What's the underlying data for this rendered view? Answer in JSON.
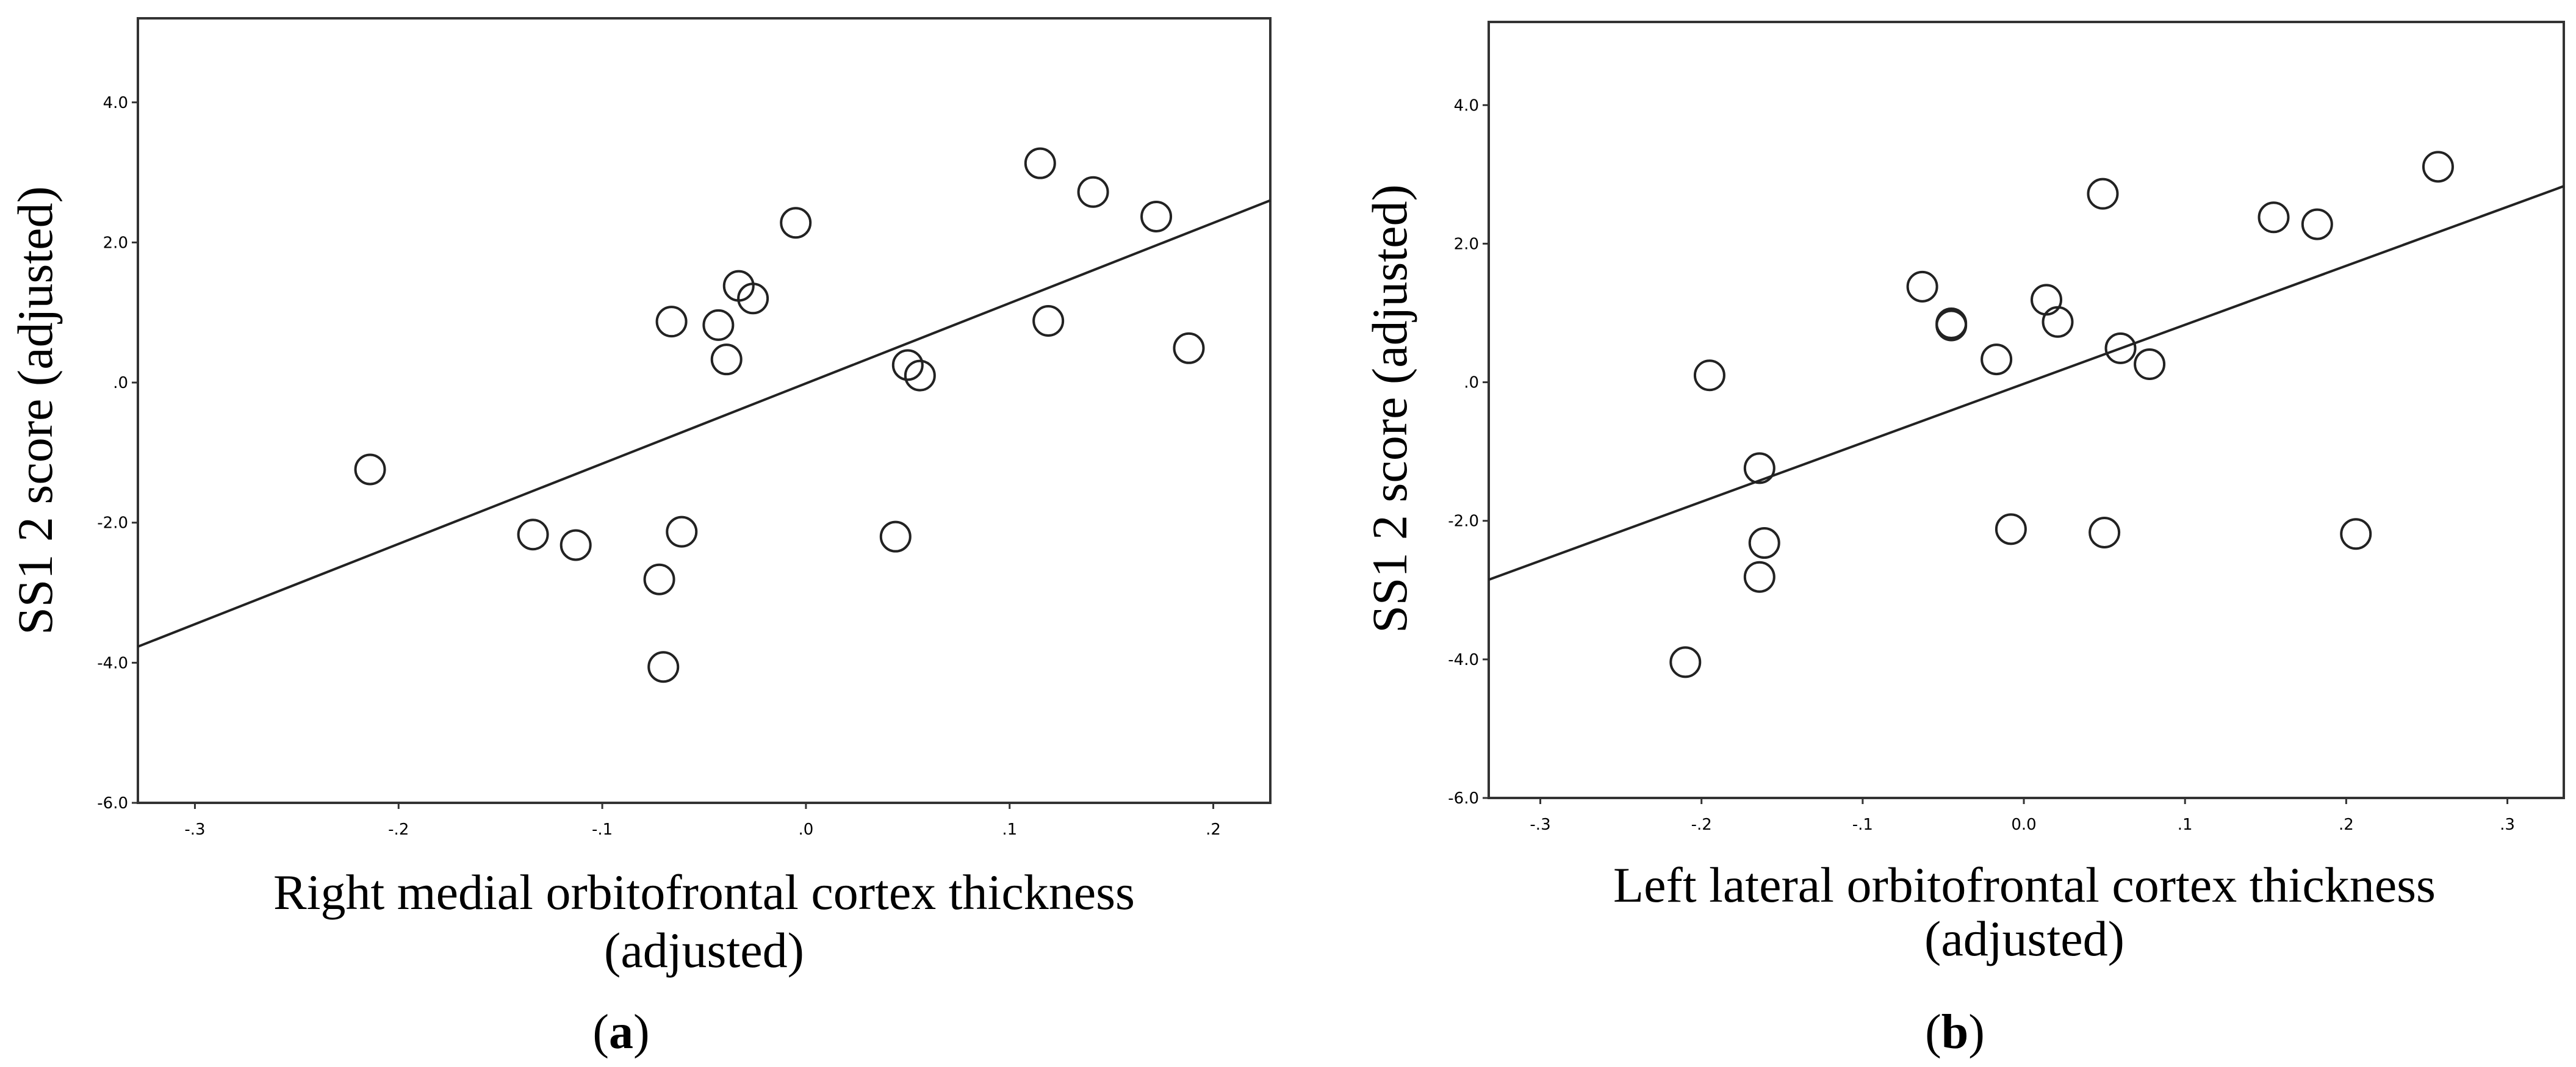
{
  "chart_data": [
    {
      "type": "scatter",
      "panel": "(a)",
      "panel_letter": "a",
      "xlabel_line1": "Right medial orbitofrontal cortex thickness",
      "xlabel_line2": "(adjusted)",
      "ylabel": "SS1 2 score (adjusted)",
      "xlim": [
        -0.328,
        0.228
      ],
      "ylim": [
        -6.0,
        5.2
      ],
      "xticks": [
        -0.3,
        -0.2,
        -0.1,
        0.0,
        0.1,
        0.2
      ],
      "xtick_labels": [
        "-.3",
        "-.2",
        "-.1",
        ".0",
        ".1",
        ".2"
      ],
      "yticks": [
        -6.0,
        -4.0,
        -2.0,
        0.0,
        2.0,
        4.0
      ],
      "ytick_labels": [
        "-6.0",
        "-4.0",
        "-2.0",
        ".0",
        "2.0",
        "4.0"
      ],
      "grid": false,
      "points": [
        {
          "x": -0.214,
          "y": -1.24
        },
        {
          "x": -0.134,
          "y": -2.17
        },
        {
          "x": -0.113,
          "y": -2.32
        },
        {
          "x": -0.072,
          "y": -2.81
        },
        {
          "x": -0.07,
          "y": -4.06
        },
        {
          "x": -0.066,
          "y": 0.87
        },
        {
          "x": -0.061,
          "y": -2.13
        },
        {
          "x": -0.043,
          "y": 0.82
        },
        {
          "x": -0.039,
          "y": 0.33
        },
        {
          "x": -0.033,
          "y": 1.38
        },
        {
          "x": -0.026,
          "y": 1.2
        },
        {
          "x": -0.005,
          "y": 2.28
        },
        {
          "x": 0.044,
          "y": -2.2
        },
        {
          "x": 0.05,
          "y": 0.25
        },
        {
          "x": 0.056,
          "y": 0.1
        },
        {
          "x": 0.115,
          "y": 3.13
        },
        {
          "x": 0.119,
          "y": 0.88
        },
        {
          "x": 0.141,
          "y": 2.72
        },
        {
          "x": 0.172,
          "y": 2.37
        },
        {
          "x": 0.188,
          "y": 0.49
        }
      ],
      "fit_line": {
        "x": [
          -0.328,
          0.228
        ],
        "y": [
          -3.77,
          2.6
        ]
      }
    },
    {
      "type": "scatter",
      "panel": "(b)",
      "panel_letter": "b",
      "xlabel_line1": "Left lateral orbitofrontal cortex thickness",
      "xlabel_line2": "(adjusted)",
      "ylabel": "SS1 2 score (adjusted)",
      "xlim": [
        -0.332,
        0.335
      ],
      "ylim": [
        -6.0,
        5.2
      ],
      "xticks": [
        -0.3,
        -0.2,
        -0.1,
        0.0,
        0.1,
        0.2,
        0.3
      ],
      "xtick_labels": [
        "-.3",
        "-.2",
        "-.1",
        "0.0",
        ".1",
        ".2",
        ".3"
      ],
      "yticks": [
        -6.0,
        -4.0,
        -2.0,
        0.0,
        2.0,
        4.0
      ],
      "ytick_labels": [
        "-6.0",
        "-4.0",
        "-2.0",
        ".0",
        "2.0",
        "4.0"
      ],
      "grid": false,
      "points": [
        {
          "x": -0.21,
          "y": -4.04
        },
        {
          "x": -0.195,
          "y": 0.1
        },
        {
          "x": -0.164,
          "y": -1.24
        },
        {
          "x": -0.164,
          "y": -2.81
        },
        {
          "x": -0.161,
          "y": -2.32
        },
        {
          "x": -0.063,
          "y": 1.38
        },
        {
          "x": -0.045,
          "y": 0.85
        },
        {
          "x": -0.045,
          "y": 0.82
        },
        {
          "x": -0.017,
          "y": 0.33
        },
        {
          "x": -0.008,
          "y": -2.12
        },
        {
          "x": 0.014,
          "y": 1.19
        },
        {
          "x": 0.021,
          "y": 0.87
        },
        {
          "x": 0.049,
          "y": 2.72
        },
        {
          "x": 0.05,
          "y": -2.17
        },
        {
          "x": 0.06,
          "y": 0.49
        },
        {
          "x": 0.078,
          "y": 0.26
        },
        {
          "x": 0.155,
          "y": 2.38
        },
        {
          "x": 0.182,
          "y": 2.28
        },
        {
          "x": 0.206,
          "y": -2.19
        },
        {
          "x": 0.257,
          "y": 3.11
        }
      ],
      "fit_line": {
        "x": [
          -0.332,
          0.335
        ],
        "y": [
          -2.85,
          2.83
        ]
      }
    }
  ]
}
